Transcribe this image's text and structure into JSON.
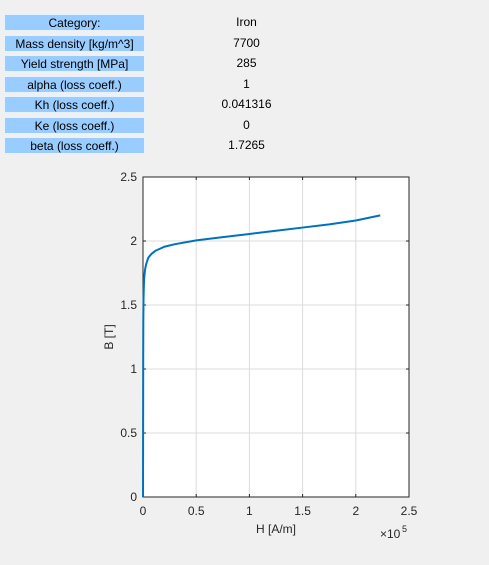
{
  "properties": [
    {
      "label": "Category:",
      "value": "Iron"
    },
    {
      "label": "Mass density [kg/m^3]",
      "value": "7700"
    },
    {
      "label": "Yield strength [MPa]",
      "value": "285"
    },
    {
      "label": "alpha (loss coeff.)",
      "value": "1"
    },
    {
      "label": "Kh (loss coeff.)",
      "value": "0.041316"
    },
    {
      "label": "Ke (loss coeff.)",
      "value": "0"
    },
    {
      "label": "beta (loss coeff.)",
      "value": "1.7265"
    }
  ],
  "colors": {
    "label_bg": "#99ccff",
    "line": "#0072bd",
    "grid": "#dcdcdc"
  },
  "chart_data": {
    "type": "line",
    "xlabel": "H [A/m]",
    "ylabel": "B [T]",
    "x_exponent_label": "×10",
    "x_exponent_power": "5",
    "xlim": [
      0,
      2.5
    ],
    "ylim": [
      0,
      2.5
    ],
    "x_ticks": [
      "0",
      "0.5",
      "1",
      "1.5",
      "2",
      "2.5"
    ],
    "y_ticks": [
      "0",
      "0.5",
      "1",
      "1.5",
      "2",
      "2.5"
    ],
    "grid": true,
    "series": [
      {
        "x": [
          0,
          0.001,
          0.002,
          0.003,
          0.005,
          0.008,
          0.012,
          0.02,
          0.03,
          0.05,
          0.08,
          0.12,
          0.2,
          0.3,
          0.5,
          0.75,
          1.0,
          1.25,
          1.5,
          1.75,
          2.0,
          2.23
        ],
        "y": [
          0,
          0.55,
          1.1,
          1.38,
          1.55,
          1.65,
          1.72,
          1.78,
          1.82,
          1.87,
          1.9,
          1.925,
          1.955,
          1.975,
          2.005,
          2.03,
          2.055,
          2.08,
          2.105,
          2.13,
          2.16,
          2.2
        ]
      }
    ]
  }
}
